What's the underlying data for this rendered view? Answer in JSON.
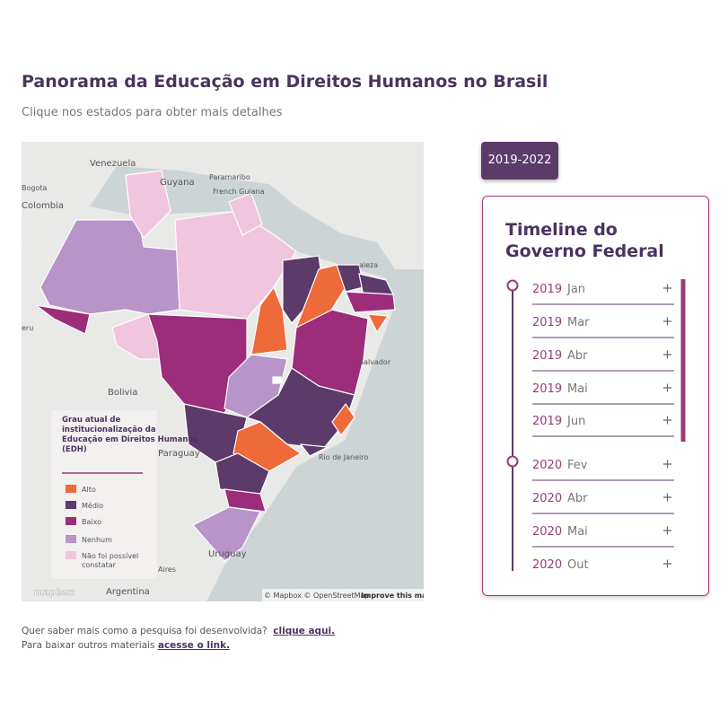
{
  "header": {
    "title": "Panorama da Educação em Direitos Humanos no Brasil",
    "subtitle": "Clique nos estados para obter mais detalhes"
  },
  "map": {
    "labels": [
      "Venezuela",
      "Guyana",
      "Paramaribo",
      "French Guiana",
      "Bogota",
      "Colombia",
      "eru",
      "Bolivia",
      "Paraguay",
      "Uruguay",
      "Argentina",
      "Aires",
      "Salvador",
      "Rio de Janeiro",
      "aleza"
    ],
    "attribution": "© Mapbox © OpenStreetMap",
    "improve": "Improve this map",
    "logo": "mapbox",
    "legend": {
      "title": "Grau atual de institucionalização da Educação em Direitos Humanos (EDH)",
      "items": [
        {
          "label": "Alto",
          "color": "#ef6a3a"
        },
        {
          "label": "Médio",
          "color": "#5c3b6b"
        },
        {
          "label": "Baixo",
          "color": "#9b2d7a"
        },
        {
          "label": "Nenhum",
          "color": "#b994c8"
        },
        {
          "label": "Não foi possível constatar",
          "color": "#f0c6de"
        }
      ]
    }
  },
  "period_button": "2019-2022",
  "timeline": {
    "title": "Timeline do Governo Federal",
    "entries": [
      {
        "year": "2019",
        "month": "Jan"
      },
      {
        "year": "2019",
        "month": "Mar"
      },
      {
        "year": "2019",
        "month": "Abr"
      },
      {
        "year": "2019",
        "month": "Mai"
      },
      {
        "year": "2019",
        "month": "Jun"
      },
      {
        "year": "2020",
        "month": "Fev"
      },
      {
        "year": "2020",
        "month": "Abr"
      },
      {
        "year": "2020",
        "month": "Mai"
      },
      {
        "year": "2020",
        "month": "Out"
      }
    ]
  },
  "footer": {
    "line1": "Quer saber mais como a pesquisa foi desenvolvida?",
    "link1": "clique aqui.",
    "line2": "Para baixar outros materiais",
    "link2": "acesse o link."
  }
}
